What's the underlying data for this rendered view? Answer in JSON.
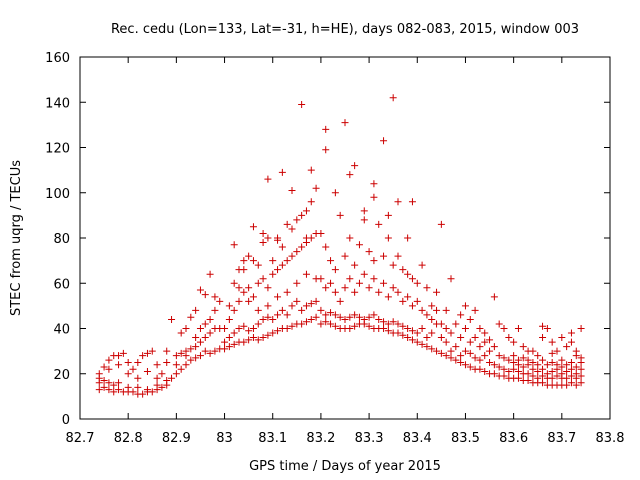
{
  "chart_data": {
    "type": "scatter",
    "title": "Rec. cedu (Lon=133, Lat=-31, h=HE), days 082-083, 2015, window 003",
    "xlabel": "GPS time / Days of year 2015",
    "ylabel": "STEC from uqrg / TECUs",
    "xlim": [
      82.7,
      83.8
    ],
    "ylim": [
      0,
      160
    ],
    "xticks": [
      "82.7",
      "82.8",
      "82.9",
      "83",
      "83.1",
      "83.2",
      "83.3",
      "83.4",
      "83.5",
      "83.6",
      "83.7",
      "83.8"
    ],
    "yticks": [
      "0",
      "20",
      "40",
      "60",
      "80",
      "100",
      "120",
      "140",
      "160"
    ],
    "grid": false,
    "legend": "none",
    "marker": "plus",
    "marker_color": "#cc0000",
    "points": [
      [
        82.74,
        13
      ],
      [
        82.75,
        14
      ],
      [
        82.76,
        13
      ],
      [
        82.77,
        12
      ],
      [
        82.78,
        13
      ],
      [
        82.79,
        12
      ],
      [
        82.8,
        12
      ],
      [
        82.81,
        12
      ],
      [
        82.82,
        11
      ],
      [
        82.83,
        11
      ],
      [
        82.84,
        12
      ],
      [
        82.85,
        12
      ],
      [
        82.86,
        13
      ],
      [
        82.87,
        14
      ],
      [
        82.88,
        15
      ],
      [
        82.89,
        18
      ],
      [
        82.74,
        16
      ],
      [
        82.75,
        17
      ],
      [
        82.76,
        16
      ],
      [
        82.77,
        15
      ],
      [
        82.78,
        16
      ],
      [
        82.8,
        14
      ],
      [
        82.82,
        14
      ],
      [
        82.84,
        13
      ],
      [
        82.86,
        15
      ],
      [
        82.88,
        17
      ],
      [
        82.74,
        20
      ],
      [
        82.75,
        23
      ],
      [
        82.76,
        26
      ],
      [
        82.77,
        28
      ],
      [
        82.78,
        28
      ],
      [
        82.79,
        29
      ],
      [
        82.8,
        25
      ],
      [
        82.81,
        22
      ],
      [
        82.82,
        25
      ],
      [
        82.83,
        28
      ],
      [
        82.84,
        29
      ],
      [
        82.85,
        30
      ],
      [
        82.86,
        24
      ],
      [
        82.87,
        20
      ],
      [
        82.88,
        30
      ],
      [
        82.89,
        44
      ],
      [
        82.74,
        18
      ],
      [
        82.76,
        22
      ],
      [
        82.78,
        24
      ],
      [
        82.8,
        20
      ],
      [
        82.82,
        18
      ],
      [
        82.84,
        21
      ],
      [
        82.86,
        18
      ],
      [
        82.88,
        25
      ],
      [
        82.9,
        20
      ],
      [
        82.91,
        22
      ],
      [
        82.92,
        24
      ],
      [
        82.93,
        26
      ],
      [
        82.94,
        27
      ],
      [
        82.95,
        28
      ],
      [
        82.96,
        30
      ],
      [
        82.97,
        29
      ],
      [
        82.98,
        30
      ],
      [
        82.99,
        31
      ],
      [
        82.9,
        28
      ],
      [
        82.91,
        29
      ],
      [
        82.92,
        30
      ],
      [
        82.93,
        31
      ],
      [
        82.94,
        32
      ],
      [
        82.95,
        34
      ],
      [
        82.96,
        36
      ],
      [
        82.97,
        38
      ],
      [
        82.98,
        40
      ],
      [
        82.99,
        40
      ],
      [
        82.9,
        24
      ],
      [
        82.92,
        28
      ],
      [
        82.94,
        36
      ],
      [
        82.95,
        40
      ],
      [
        82.96,
        42
      ],
      [
        82.97,
        44
      ],
      [
        82.98,
        48
      ],
      [
        82.99,
        52
      ],
      [
        82.91,
        38
      ],
      [
        82.92,
        40
      ],
      [
        82.93,
        45
      ],
      [
        82.94,
        48
      ],
      [
        82.95,
        57
      ],
      [
        82.96,
        55
      ],
      [
        82.97,
        64
      ],
      [
        82.98,
        54
      ],
      [
        83.0,
        31
      ],
      [
        83.01,
        32
      ],
      [
        83.02,
        33
      ],
      [
        83.03,
        34
      ],
      [
        83.04,
        34
      ],
      [
        83.05,
        35
      ],
      [
        83.06,
        36
      ],
      [
        83.07,
        35
      ],
      [
        83.08,
        36
      ],
      [
        83.09,
        37
      ],
      [
        83.1,
        38
      ],
      [
        83.11,
        39
      ],
      [
        83.12,
        40
      ],
      [
        83.13,
        40
      ],
      [
        83.14,
        41
      ],
      [
        83.15,
        42
      ],
      [
        83.16,
        42
      ],
      [
        83.17,
        43
      ],
      [
        83.18,
        44
      ],
      [
        83.19,
        45
      ],
      [
        83.0,
        34
      ],
      [
        83.01,
        36
      ],
      [
        83.02,
        38
      ],
      [
        83.03,
        40
      ],
      [
        83.04,
        41
      ],
      [
        83.05,
        39
      ],
      [
        83.06,
        40
      ],
      [
        83.07,
        42
      ],
      [
        83.08,
        44
      ],
      [
        83.09,
        45
      ],
      [
        83.1,
        44
      ],
      [
        83.11,
        46
      ],
      [
        83.12,
        48
      ],
      [
        83.13,
        46
      ],
      [
        83.14,
        50
      ],
      [
        83.15,
        52
      ],
      [
        83.16,
        48
      ],
      [
        83.17,
        50
      ],
      [
        83.18,
        51
      ],
      [
        83.19,
        52
      ],
      [
        83.0,
        40
      ],
      [
        83.01,
        44
      ],
      [
        83.02,
        48
      ],
      [
        83.03,
        52
      ],
      [
        83.04,
        56
      ],
      [
        83.05,
        58
      ],
      [
        83.06,
        54
      ],
      [
        83.07,
        60
      ],
      [
        83.08,
        62
      ],
      [
        83.09,
        58
      ],
      [
        83.1,
        64
      ],
      [
        83.11,
        66
      ],
      [
        83.12,
        68
      ],
      [
        83.13,
        70
      ],
      [
        83.14,
        72
      ],
      [
        83.15,
        74
      ],
      [
        83.16,
        76
      ],
      [
        83.17,
        78
      ],
      [
        83.18,
        80
      ],
      [
        83.19,
        82
      ],
      [
        83.01,
        50
      ],
      [
        83.02,
        60
      ],
      [
        83.03,
        66
      ],
      [
        83.04,
        70
      ],
      [
        83.05,
        72
      ],
      [
        83.06,
        70
      ],
      [
        83.07,
        68
      ],
      [
        83.08,
        78
      ],
      [
        83.09,
        80
      ],
      [
        83.1,
        70
      ],
      [
        83.11,
        80
      ],
      [
        83.12,
        76
      ],
      [
        83.13,
        86
      ],
      [
        83.14,
        84
      ],
      [
        83.15,
        88
      ],
      [
        83.16,
        90
      ],
      [
        83.17,
        92
      ],
      [
        83.18,
        96
      ],
      [
        83.02,
        77
      ],
      [
        83.04,
        66
      ],
      [
        83.06,
        85
      ],
      [
        83.08,
        82
      ],
      [
        83.09,
        106
      ],
      [
        83.11,
        79
      ],
      [
        83.12,
        109
      ],
      [
        83.14,
        101
      ],
      [
        83.16,
        139
      ],
      [
        83.17,
        80
      ],
      [
        83.18,
        110
      ],
      [
        83.19,
        102
      ],
      [
        83.03,
        58
      ],
      [
        83.05,
        52
      ],
      [
        83.07,
        48
      ],
      [
        83.09,
        50
      ],
      [
        83.11,
        54
      ],
      [
        83.13,
        56
      ],
      [
        83.15,
        60
      ],
      [
        83.17,
        64
      ],
      [
        83.19,
        62
      ],
      [
        83.2,
        42
      ],
      [
        83.21,
        43
      ],
      [
        83.22,
        42
      ],
      [
        83.23,
        41
      ],
      [
        83.24,
        40
      ],
      [
        83.25,
        40
      ],
      [
        83.26,
        40
      ],
      [
        83.27,
        41
      ],
      [
        83.28,
        42
      ],
      [
        83.29,
        42
      ],
      [
        83.3,
        41
      ],
      [
        83.31,
        40
      ],
      [
        83.32,
        40
      ],
      [
        83.33,
        40
      ],
      [
        83.34,
        39
      ],
      [
        83.35,
        38
      ],
      [
        83.36,
        38
      ],
      [
        83.37,
        37
      ],
      [
        83.38,
        36
      ],
      [
        83.39,
        35
      ],
      [
        83.2,
        48
      ],
      [
        83.21,
        46
      ],
      [
        83.22,
        47
      ],
      [
        83.23,
        46
      ],
      [
        83.24,
        45
      ],
      [
        83.25,
        44
      ],
      [
        83.26,
        45
      ],
      [
        83.27,
        46
      ],
      [
        83.28,
        45
      ],
      [
        83.29,
        44
      ],
      [
        83.3,
        45
      ],
      [
        83.31,
        46
      ],
      [
        83.32,
        44
      ],
      [
        83.33,
        43
      ],
      [
        83.34,
        42
      ],
      [
        83.35,
        43
      ],
      [
        83.36,
        42
      ],
      [
        83.37,
        41
      ],
      [
        83.38,
        40
      ],
      [
        83.39,
        39
      ],
      [
        83.2,
        62
      ],
      [
        83.21,
        58
      ],
      [
        83.22,
        60
      ],
      [
        83.23,
        56
      ],
      [
        83.24,
        52
      ],
      [
        83.25,
        58
      ],
      [
        83.26,
        62
      ],
      [
        83.27,
        56
      ],
      [
        83.28,
        60
      ],
      [
        83.29,
        64
      ],
      [
        83.3,
        58
      ],
      [
        83.31,
        62
      ],
      [
        83.32,
        56
      ],
      [
        83.33,
        60
      ],
      [
        83.34,
        54
      ],
      [
        83.35,
        58
      ],
      [
        83.36,
        56
      ],
      [
        83.37,
        52
      ],
      [
        83.38,
        54
      ],
      [
        83.39,
        50
      ],
      [
        83.2,
        82
      ],
      [
        83.21,
        76
      ],
      [
        83.22,
        70
      ],
      [
        83.23,
        66
      ],
      [
        83.24,
        90
      ],
      [
        83.25,
        72
      ],
      [
        83.26,
        80
      ],
      [
        83.27,
        68
      ],
      [
        83.28,
        77
      ],
      [
        83.29,
        88
      ],
      [
        83.3,
        74
      ],
      [
        83.31,
        70
      ],
      [
        83.32,
        86
      ],
      [
        83.33,
        72
      ],
      [
        83.34,
        80
      ],
      [
        83.35,
        68
      ],
      [
        83.36,
        72
      ],
      [
        83.37,
        66
      ],
      [
        83.38,
        64
      ],
      [
        83.39,
        62
      ],
      [
        83.21,
        128
      ],
      [
        83.21,
        119
      ],
      [
        83.23,
        100
      ],
      [
        83.25,
        131
      ],
      [
        83.26,
        108
      ],
      [
        83.27,
        112
      ],
      [
        83.29,
        92
      ],
      [
        83.31,
        98
      ],
      [
        83.31,
        104
      ],
      [
        83.33,
        123
      ],
      [
        83.34,
        90
      ],
      [
        83.35,
        142
      ],
      [
        83.36,
        96
      ],
      [
        83.38,
        80
      ],
      [
        83.39,
        96
      ],
      [
        83.4,
        34
      ],
      [
        83.41,
        33
      ],
      [
        83.42,
        32
      ],
      [
        83.43,
        31
      ],
      [
        83.44,
        30
      ],
      [
        83.45,
        29
      ],
      [
        83.46,
        28
      ],
      [
        83.47,
        27
      ],
      [
        83.48,
        26
      ],
      [
        83.49,
        25
      ],
      [
        83.5,
        24
      ],
      [
        83.51,
        23
      ],
      [
        83.52,
        22
      ],
      [
        83.53,
        22
      ],
      [
        83.54,
        21
      ],
      [
        83.55,
        20
      ],
      [
        83.56,
        20
      ],
      [
        83.57,
        19
      ],
      [
        83.58,
        19
      ],
      [
        83.59,
        18
      ],
      [
        83.4,
        38
      ],
      [
        83.41,
        40
      ],
      [
        83.42,
        36
      ],
      [
        83.43,
        38
      ],
      [
        83.44,
        42
      ],
      [
        83.45,
        36
      ],
      [
        83.46,
        34
      ],
      [
        83.47,
        30
      ],
      [
        83.48,
        32
      ],
      [
        83.49,
        28
      ],
      [
        83.5,
        30
      ],
      [
        83.51,
        29
      ],
      [
        83.52,
        27
      ],
      [
        83.53,
        26
      ],
      [
        83.54,
        28
      ],
      [
        83.55,
        25
      ],
      [
        83.56,
        24
      ],
      [
        83.57,
        23
      ],
      [
        83.58,
        22
      ],
      [
        83.59,
        21
      ],
      [
        83.4,
        52
      ],
      [
        83.41,
        48
      ],
      [
        83.42,
        46
      ],
      [
        83.43,
        44
      ],
      [
        83.44,
        48
      ],
      [
        83.45,
        42
      ],
      [
        83.46,
        40
      ],
      [
        83.47,
        38
      ],
      [
        83.48,
        42
      ],
      [
        83.49,
        36
      ],
      [
        83.5,
        40
      ],
      [
        83.51,
        34
      ],
      [
        83.52,
        36
      ],
      [
        83.53,
        32
      ],
      [
        83.54,
        34
      ],
      [
        83.55,
        30
      ],
      [
        83.56,
        32
      ],
      [
        83.57,
        28
      ],
      [
        83.58,
        27
      ],
      [
        83.59,
        26
      ],
      [
        83.4,
        60
      ],
      [
        83.41,
        68
      ],
      [
        83.42,
        58
      ],
      [
        83.43,
        50
      ],
      [
        83.44,
        56
      ],
      [
        83.45,
        86
      ],
      [
        83.46,
        48
      ],
      [
        83.47,
        62
      ],
      [
        83.49,
        46
      ],
      [
        83.5,
        50
      ],
      [
        83.51,
        44
      ],
      [
        83.52,
        48
      ],
      [
        83.53,
        40
      ],
      [
        83.54,
        38
      ],
      [
        83.55,
        35
      ],
      [
        83.56,
        54
      ],
      [
        83.57,
        42
      ],
      [
        83.58,
        40
      ],
      [
        83.59,
        36
      ],
      [
        83.6,
        18
      ],
      [
        83.61,
        18
      ],
      [
        83.62,
        17
      ],
      [
        83.63,
        17
      ],
      [
        83.64,
        16
      ],
      [
        83.65,
        16
      ],
      [
        83.66,
        16
      ],
      [
        83.67,
        15
      ],
      [
        83.68,
        15
      ],
      [
        83.69,
        15
      ],
      [
        83.7,
        15
      ],
      [
        83.71,
        15
      ],
      [
        83.72,
        16
      ],
      [
        83.73,
        15
      ],
      [
        83.74,
        16
      ],
      [
        83.6,
        22
      ],
      [
        83.61,
        21
      ],
      [
        83.62,
        20
      ],
      [
        83.63,
        20
      ],
      [
        83.64,
        19
      ],
      [
        83.65,
        18
      ],
      [
        83.66,
        19
      ],
      [
        83.67,
        18
      ],
      [
        83.68,
        18
      ],
      [
        83.69,
        19
      ],
      [
        83.7,
        18
      ],
      [
        83.71,
        18
      ],
      [
        83.72,
        19
      ],
      [
        83.73,
        18
      ],
      [
        83.74,
        19
      ],
      [
        83.6,
        25
      ],
      [
        83.61,
        24
      ],
      [
        83.62,
        23
      ],
      [
        83.63,
        24
      ],
      [
        83.64,
        22
      ],
      [
        83.65,
        21
      ],
      [
        83.66,
        22
      ],
      [
        83.67,
        20
      ],
      [
        83.68,
        21
      ],
      [
        83.69,
        22
      ],
      [
        83.7,
        20
      ],
      [
        83.71,
        21
      ],
      [
        83.72,
        22
      ],
      [
        83.73,
        20
      ],
      [
        83.74,
        22
      ],
      [
        83.6,
        28
      ],
      [
        83.61,
        26
      ],
      [
        83.62,
        27
      ],
      [
        83.63,
        26
      ],
      [
        83.64,
        25
      ],
      [
        83.65,
        24
      ],
      [
        83.66,
        26
      ],
      [
        83.67,
        24
      ],
      [
        83.68,
        25
      ],
      [
        83.69,
        24
      ],
      [
        83.7,
        23
      ],
      [
        83.71,
        24
      ],
      [
        83.72,
        25
      ],
      [
        83.73,
        23
      ],
      [
        83.74,
        25
      ],
      [
        83.6,
        34
      ],
      [
        83.62,
        32
      ],
      [
        83.63,
        30
      ],
      [
        83.65,
        28
      ],
      [
        83.66,
        36
      ],
      [
        83.67,
        40
      ],
      [
        83.68,
        34
      ],
      [
        83.69,
        30
      ],
      [
        83.7,
        36
      ],
      [
        83.71,
        32
      ],
      [
        83.72,
        38
      ],
      [
        83.73,
        30
      ],
      [
        83.74,
        40
      ],
      [
        83.61,
        40
      ],
      [
        83.64,
        30
      ],
      [
        83.66,
        41
      ],
      [
        83.68,
        29
      ],
      [
        83.7,
        26
      ],
      [
        83.72,
        34
      ],
      [
        83.73,
        28
      ],
      [
        83.74,
        27
      ]
    ]
  }
}
